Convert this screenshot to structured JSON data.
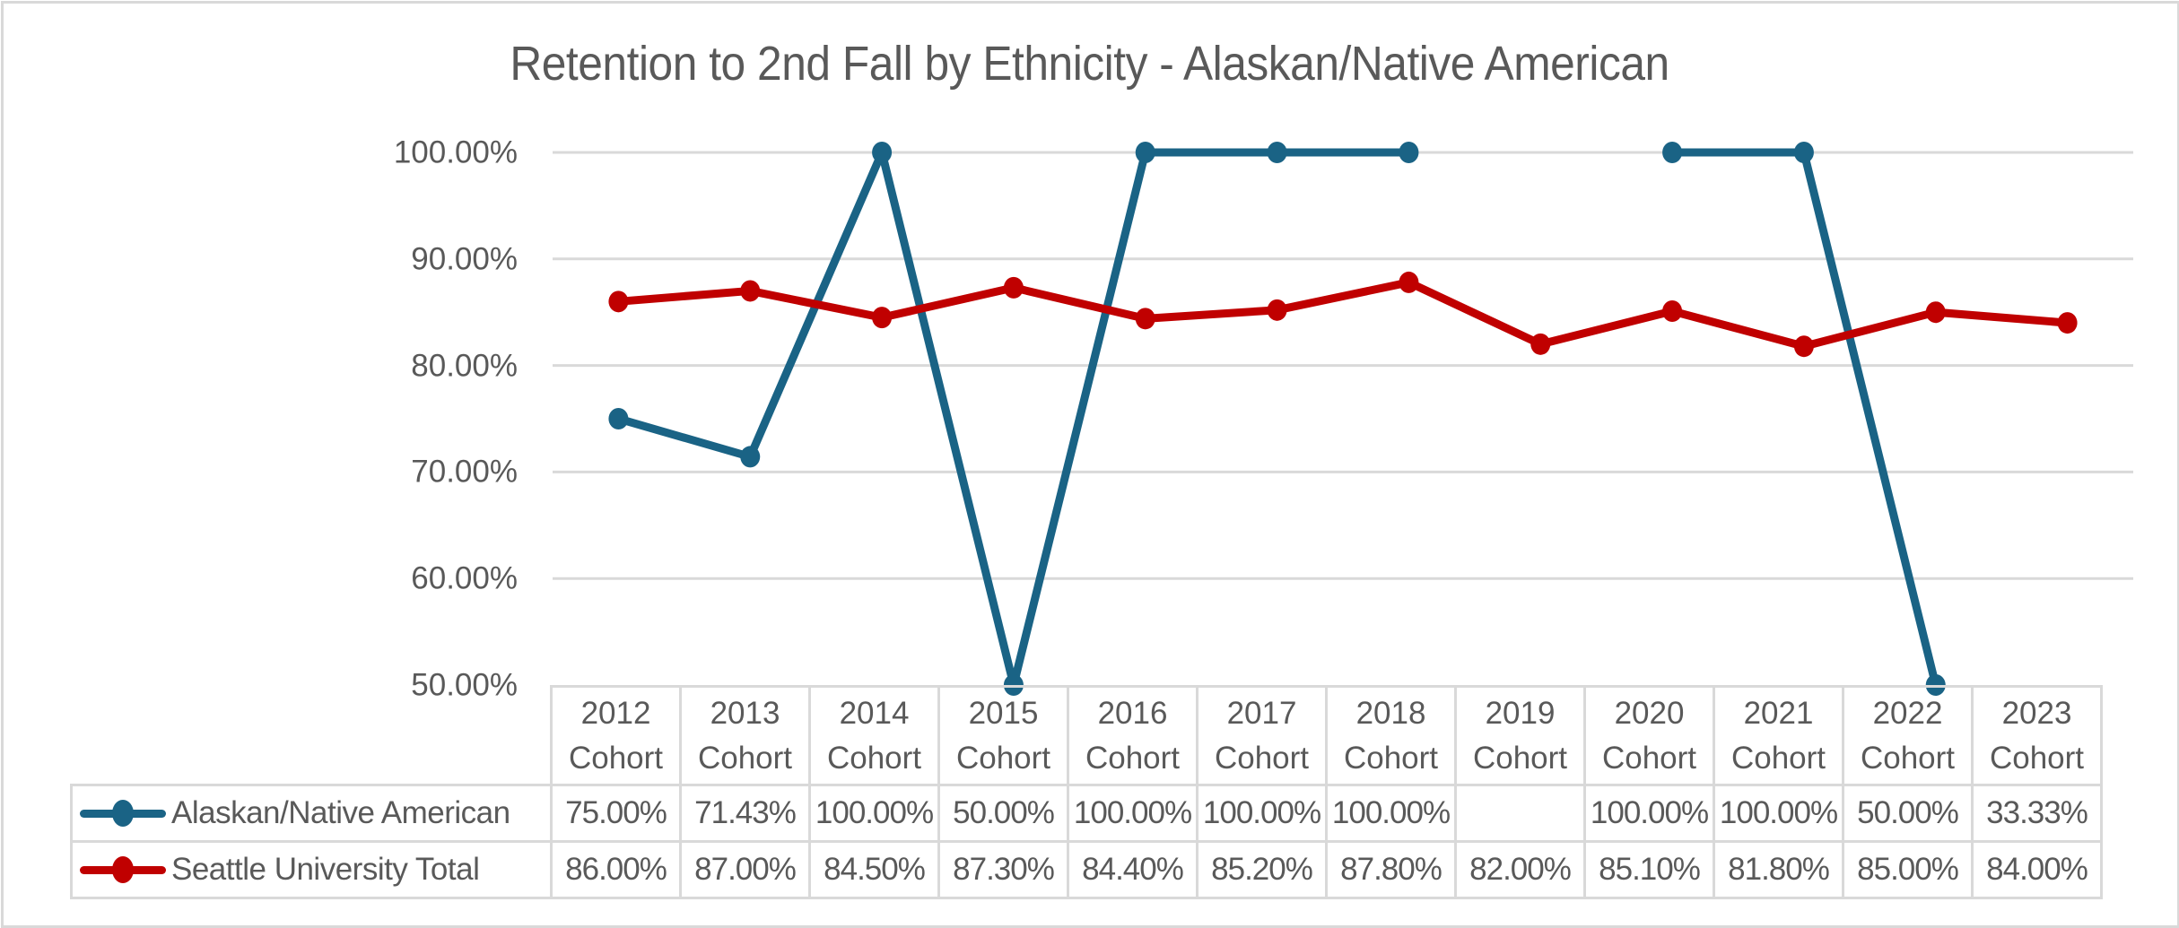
{
  "chart_data": {
    "type": "line",
    "title": "Retention to 2nd Fall by Ethnicity - Alaskan/Native American",
    "xlabel": "",
    "ylabel": "",
    "ylim": [
      0.5,
      1.0
    ],
    "y_ticks": [
      "100.00%",
      "90.00%",
      "80.00%",
      "70.00%",
      "60.00%",
      "50.00%"
    ],
    "y_tick_values": [
      1.0,
      0.9,
      0.8,
      0.7,
      0.6,
      0.5
    ],
    "grid": true,
    "legend_position": "data-table",
    "categories": [
      "2012 Cohort",
      "2013 Cohort",
      "2014 Cohort",
      "2015 Cohort",
      "2016 Cohort",
      "2017 Cohort",
      "2018 Cohort",
      "2019 Cohort",
      "2020 Cohort",
      "2021 Cohort",
      "2022 Cohort",
      "2023 Cohort"
    ],
    "category_lines": [
      [
        "2012",
        "Cohort"
      ],
      [
        "2013",
        "Cohort"
      ],
      [
        "2014",
        "Cohort"
      ],
      [
        "2015",
        "Cohort"
      ],
      [
        "2016",
        "Cohort"
      ],
      [
        "2017",
        "Cohort"
      ],
      [
        "2018",
        "Cohort"
      ],
      [
        "2019",
        "Cohort"
      ],
      [
        "2020",
        "Cohort"
      ],
      [
        "2021",
        "Cohort"
      ],
      [
        "2022",
        "Cohort"
      ],
      [
        "2023",
        "Cohort"
      ]
    ],
    "series": [
      {
        "name": "Alaskan/Native American",
        "color": "#1A6385",
        "values": [
          0.75,
          0.7143,
          1.0,
          0.5,
          1.0,
          1.0,
          1.0,
          null,
          1.0,
          1.0,
          0.5,
          0.3333
        ],
        "labels": [
          "75.00%",
          "71.43%",
          "100.00%",
          "50.00%",
          "100.00%",
          "100.00%",
          "100.00%",
          "",
          "100.00%",
          "100.00%",
          "50.00%",
          "33.33%"
        ]
      },
      {
        "name": "Seattle University Total",
        "color": "#C00000",
        "values": [
          0.86,
          0.87,
          0.845,
          0.873,
          0.844,
          0.852,
          0.878,
          0.82,
          0.851,
          0.818,
          0.85,
          0.84
        ],
        "labels": [
          "86.00%",
          "87.00%",
          "84.50%",
          "87.30%",
          "84.40%",
          "85.20%",
          "87.80%",
          "82.00%",
          "85.10%",
          "81.80%",
          "85.00%",
          "84.00%"
        ]
      }
    ]
  },
  "colors": {
    "text": "#595959",
    "grid": "#D9D9D9",
    "frame": "#D9D9D9"
  }
}
